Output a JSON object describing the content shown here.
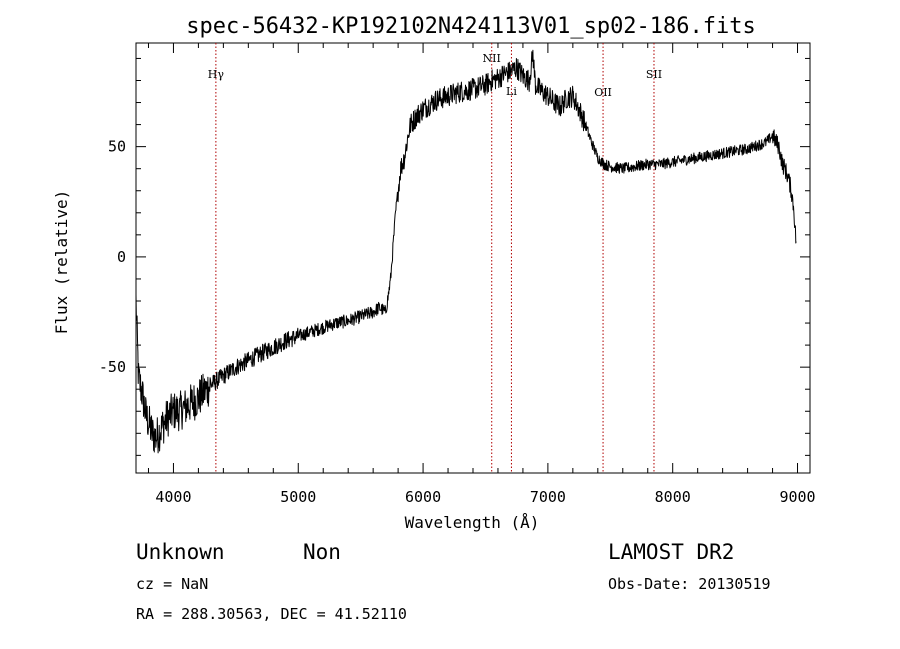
{
  "chart_data": {
    "type": "line",
    "title": "spec-56432-KP192102N424113V01_sp02-186.fits",
    "xlabel": "Wavelength (Å)",
    "ylabel": "Flux (relative)",
    "xlim": [
      3700,
      9100
    ],
    "ylim": [
      -98,
      97
    ],
    "xticks": [
      4000,
      5000,
      6000,
      7000,
      8000,
      9000
    ],
    "yticks": [
      -50,
      0,
      50
    ],
    "series": [
      {
        "x": [
          3700,
          3720,
          3750,
          3780,
          3800,
          3830,
          3860,
          3900,
          3950,
          4000,
          4050,
          4100,
          4150,
          4200,
          4250,
          4300,
          4350,
          4400,
          4450,
          4500,
          4600,
          4700,
          4800,
          4900,
          5000,
          5100,
          5200,
          5300,
          5400,
          5500,
          5600,
          5650,
          5700,
          5720,
          5740,
          5760,
          5780,
          5800,
          5820,
          5850,
          5880,
          5900,
          5950,
          6000,
          6050,
          6100,
          6200,
          6300,
          6400,
          6500,
          6550,
          6600,
          6650,
          6700,
          6750,
          6800,
          6850,
          6880,
          6900,
          6950,
          7000,
          7050,
          7100,
          7150,
          7200,
          7250,
          7300,
          7350,
          7400,
          7450,
          7500,
          7600,
          7700,
          7800,
          7900,
          8000,
          8100,
          8200,
          8300,
          8400,
          8500,
          8600,
          8700,
          8750,
          8800,
          8850,
          8880,
          8900,
          8930,
          8950,
          8970,
          8990
        ],
        "y": [
          -20,
          -55,
          -62,
          -72,
          -75,
          -80,
          -82,
          -78,
          -73,
          -70,
          -70,
          -68,
          -66,
          -64,
          -61,
          -58,
          -56,
          -54,
          -52,
          -50,
          -47,
          -44,
          -41,
          -38,
          -36,
          -34,
          -32,
          -30,
          -29,
          -27,
          -25,
          -23,
          -25,
          -18,
          -10,
          5,
          20,
          30,
          40,
          45,
          55,
          60,
          64,
          67,
          69,
          71,
          73,
          75,
          76,
          78,
          80,
          81,
          83,
          84,
          86,
          82,
          80,
          92,
          78,
          75,
          73,
          70,
          68,
          72,
          73,
          67,
          60,
          52,
          45,
          42,
          41,
          40,
          41,
          42,
          42,
          43,
          44,
          45,
          46,
          47,
          48,
          49,
          51,
          52,
          55,
          50,
          42,
          40,
          35,
          30,
          22,
          5
        ]
      }
    ],
    "annotations": [
      {
        "label": "Hγ",
        "x": 4340
      },
      {
        "label": "NII",
        "x": 6550
      },
      {
        "label": "Li",
        "x": 6708
      },
      {
        "label": "OII",
        "x": 7442
      },
      {
        "label": "SII",
        "x": 7850
      }
    ],
    "annotation_color": "#b00000",
    "line_color": "#000000",
    "grid": false
  },
  "info": {
    "class_text": "Unknown",
    "subclass_text": "Non",
    "survey": "LAMOST DR2",
    "cz": "cz = NaN",
    "obs_date": "Obs-Date: 20130519",
    "coords": "RA = 288.30563, DEC =  41.52110"
  }
}
